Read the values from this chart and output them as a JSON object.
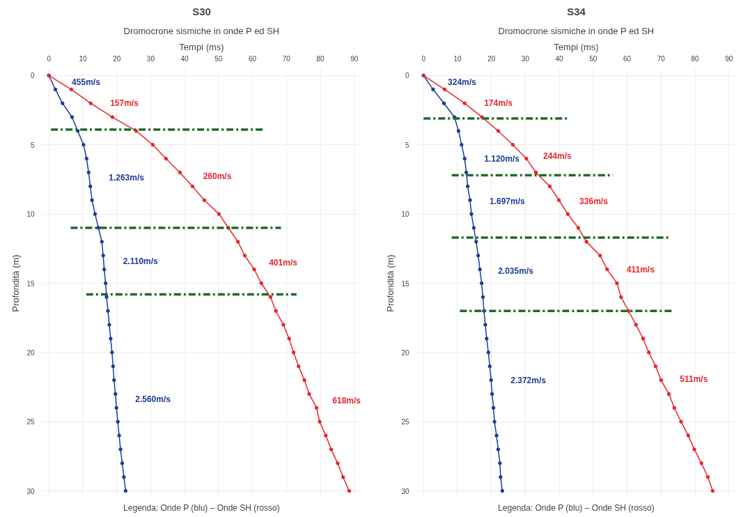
{
  "chart_data": [
    {
      "type": "line",
      "title": "S30",
      "subtitle": "Dromocrone sismiche in onde P ed SH",
      "xlabel": "Tempi (ms)",
      "ylabel": "Profondità (m)",
      "xlim": [
        -2,
        92
      ],
      "ylim": [
        30.5,
        -0.5
      ],
      "xticks": [
        0,
        10,
        20,
        30,
        40,
        50,
        60,
        70,
        80,
        90
      ],
      "yticks": [
        0,
        5,
        10,
        15,
        20,
        25,
        30
      ],
      "grid": true,
      "marker": "circle",
      "line_style": "solid",
      "series": [
        {
          "color": "#1c3d96",
          "x": [
            0,
            1.9,
            4.0,
            6.8,
            8.5,
            10.2,
            11.1,
            11.7,
            12.2,
            12.7,
            13.6,
            14.6,
            15.6,
            16.0,
            16.3,
            16.7,
            17.0,
            17.4,
            17.8,
            18.2,
            18.6,
            18.9,
            19.2,
            19.6,
            19.9,
            20.3,
            20.7,
            21.1,
            21.6,
            22.1,
            22.6
          ],
          "values": [
            0,
            1,
            2,
            3,
            4,
            5,
            6,
            7,
            8,
            9,
            10,
            11,
            12,
            13,
            14,
            15,
            16,
            17,
            18,
            19,
            20,
            21,
            22,
            23,
            24,
            25,
            26,
            27,
            28,
            29,
            30
          ]
        },
        {
          "color": "#e8262a",
          "x": [
            0,
            6.6,
            12.3,
            18.7,
            25.7,
            30.6,
            34.5,
            38.6,
            42.3,
            45.8,
            50.1,
            52.9,
            55.7,
            57.7,
            60.5,
            62.6,
            65.3,
            66.9,
            69.1,
            70.8,
            72.1,
            73.6,
            75.3,
            76.7,
            78.9,
            79.8,
            81.6,
            83.2,
            85.1,
            86.7,
            88.5
          ],
          "values": [
            0,
            1,
            2,
            3,
            4,
            5,
            6,
            7,
            8,
            9,
            10,
            11,
            12,
            13,
            14,
            15,
            16,
            17,
            18,
            19,
            20,
            21,
            22,
            23,
            24,
            25,
            26,
            27,
            28,
            29,
            30
          ]
        },
        {
          "color": "#1d6b2b",
          "marker": "none",
          "line_style": "dashdot",
          "x": [
            0.6,
            63
          ],
          "values": [
            3.9,
            3.9
          ]
        },
        {
          "color": "#1d6b2b",
          "marker": "none",
          "line_style": "dashdot",
          "x": [
            6.4,
            68.4
          ],
          "values": [
            11,
            11
          ]
        },
        {
          "color": "#1d6b2b",
          "marker": "none",
          "line_style": "dashdot",
          "x": [
            11,
            73
          ],
          "values": [
            15.8,
            15.8
          ]
        }
      ],
      "annotations": [
        {
          "text": "455m/s",
          "x": 1.0,
          "y": 0.5
        },
        {
          "text": "157m/s",
          "x": 12.3,
          "y": 2.0
        },
        {
          "text": "1.263m/s",
          "x": 11.9,
          "y": 7.4
        },
        {
          "text": "260m/s",
          "x": 39.7,
          "y": 7.3
        },
        {
          "text": "2.110m/s",
          "x": 16.1,
          "y": 13.4
        },
        {
          "text": "401m/s",
          "x": 59.1,
          "y": 13.5
        },
        {
          "text": "2.560m/s",
          "x": 19.7,
          "y": 23.4
        },
        {
          "text": "618m/s",
          "x": 77.8,
          "y": 23.5
        },
        "Legenda: Onde P (blu) – Onde SH (rosso)"
      ]
    },
    {
      "type": "line",
      "title": "S34",
      "subtitle": "Dromocrone sismiche in onde P ed SH",
      "xlabel": "Tempi (ms)",
      "ylabel": "Profondità (m)",
      "xlim": [
        -2,
        92
      ],
      "ylim": [
        30.5,
        -0.5
      ],
      "xticks": [
        0,
        10,
        20,
        30,
        40,
        50,
        60,
        70,
        80,
        90
      ],
      "yticks": [
        0,
        5,
        10,
        15,
        20,
        25,
        30
      ],
      "grid": true,
      "marker": "circle",
      "line_style": "solid",
      "series": [
        {
          "color": "#1c3d96",
          "x": [
            0,
            2.8,
            6.0,
            9.1,
            10.3,
            11.2,
            12.1,
            12.6,
            13.0,
            13.7,
            14.1,
            14.8,
            15.5,
            16.1,
            16.6,
            17.1,
            17.5,
            17.8,
            18.2,
            18.6,
            19.1,
            19.5,
            19.9,
            20.2,
            20.6,
            20.9,
            21.5,
            22.0,
            22.5,
            22.7,
            23.2
          ],
          "values": [
            0,
            1,
            2,
            3,
            4,
            5,
            6,
            7,
            8,
            9,
            10,
            11,
            12,
            13,
            14,
            15,
            16,
            17,
            18,
            19,
            20,
            21,
            22,
            23,
            24,
            25,
            26,
            27,
            28,
            29,
            30
          ]
        },
        {
          "color": "#e8262a",
          "x": [
            0,
            6.2,
            12.1,
            17.2,
            22.0,
            26.3,
            30.3,
            33.1,
            37.2,
            39.9,
            42.5,
            45.6,
            48.0,
            52.0,
            54.1,
            57.0,
            58.2,
            60.4,
            62.6,
            64.7,
            66.4,
            68.4,
            70.0,
            72.3,
            73.9,
            75.9,
            78.0,
            79.8,
            81.9,
            83.8,
            85.2
          ],
          "values": [
            0,
            1,
            2,
            3,
            4,
            5,
            6,
            7,
            8,
            9,
            10,
            11,
            12,
            13,
            14,
            15,
            16,
            17,
            18,
            19,
            20,
            21,
            22,
            23,
            24,
            25,
            26,
            27,
            28,
            29,
            30
          ]
        },
        {
          "color": "#1d6b2b",
          "marker": "none",
          "line_style": "dashdot",
          "x": [
            0,
            43
          ],
          "values": [
            3.1,
            3.1
          ]
        },
        {
          "color": "#1d6b2b",
          "marker": "none",
          "line_style": "dashdot",
          "x": [
            8.3,
            55.8
          ],
          "values": [
            7.2,
            7.2
          ]
        },
        {
          "color": "#1d6b2b",
          "marker": "none",
          "line_style": "dashdot",
          "x": [
            8.3,
            72.8
          ],
          "values": [
            11.7,
            11.7
          ]
        },
        {
          "color": "#1d6b2b",
          "marker": "none",
          "line_style": "dashdot",
          "x": [
            10.7,
            73.8
          ],
          "values": [
            17,
            17
          ]
        }
      ],
      "annotations": [
        {
          "text": "324m/s",
          "x": 1.4,
          "y": 0.5
        },
        {
          "text": "174m/s",
          "x": 12.1,
          "y": 2.0
        },
        {
          "text": "1.120m/s",
          "x": 12.1,
          "y": 6.0
        },
        {
          "text": "244m/s",
          "x": 29.5,
          "y": 5.8
        },
        {
          "text": "1.697m/s",
          "x": 13.7,
          "y": 9.1
        },
        {
          "text": "336m/s",
          "x": 40.2,
          "y": 9.1
        },
        {
          "text": "2.035m/s",
          "x": 16.2,
          "y": 14.1
        },
        {
          "text": "411m/s",
          "x": 54.1,
          "y": 14.0
        },
        {
          "text": "2.372m/s",
          "x": 19.9,
          "y": 22.0
        },
        {
          "text": "511m/s",
          "x": 69.8,
          "y": 21.9
        },
        "Legenda: Onde P (blu) – Onde SH (rosso)"
      ]
    }
  ]
}
